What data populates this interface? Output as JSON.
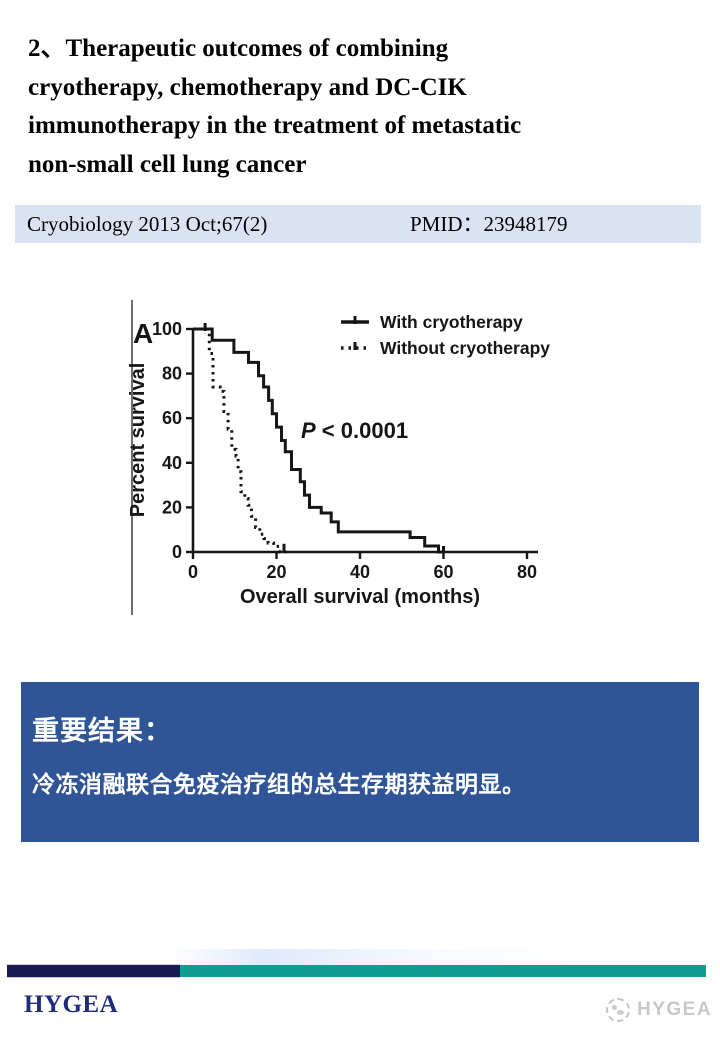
{
  "slide": {
    "title_lines": [
      "2、Therapeutic outcomes of combining",
      "cryotherapy, chemotherapy and DC-CIK",
      "immunotherapy in the treatment of metastatic",
      "non-small cell lung cancer"
    ],
    "citation": {
      "journal": "Cryobiology 2013 Oct;67(2)",
      "pmid": "PMID：23948179"
    }
  },
  "results_box": {
    "heading": "重要结果：",
    "body": "冷冻消融联合免疫治疗组的总生存期获益明显。",
    "bg_color": "#2F5597",
    "text_color": "#FFFFFF"
  },
  "footer": {
    "brand": "HYGEA",
    "brand_color": "#1F2C7C",
    "bar_navy_color": "#1A1A52",
    "bar_teal_color": "#109C90",
    "watermark_text": "HYGEA",
    "watermark_color": "#C8C8C8"
  },
  "chart_data": {
    "type": "line",
    "subtype": "kaplan-meier-step",
    "panel_label": "A",
    "title": "",
    "xlabel": "Overall survival (months)",
    "ylabel": "Percent survival",
    "xlim": [
      0,
      80
    ],
    "ylim": [
      0,
      100
    ],
    "xticks": [
      0,
      20,
      40,
      60,
      80
    ],
    "yticks": [
      0,
      20,
      40,
      60,
      80,
      100
    ],
    "grid": false,
    "legend_position": "top-right",
    "annotation": "P < 0.0001",
    "ink_color": "#161616",
    "series": [
      {
        "name": "With cryotherapy",
        "style": "solid",
        "color": "#161616",
        "points": [
          [
            0,
            100
          ],
          [
            4.6,
            100
          ],
          [
            4.6,
            95
          ],
          [
            9.8,
            95
          ],
          [
            9.8,
            89.5
          ],
          [
            13.3,
            89.5
          ],
          [
            13.3,
            85
          ],
          [
            15.7,
            85
          ],
          [
            15.7,
            79
          ],
          [
            16.9,
            79
          ],
          [
            16.9,
            74
          ],
          [
            18.1,
            74
          ],
          [
            18.1,
            68
          ],
          [
            19,
            68
          ],
          [
            19,
            62
          ],
          [
            20,
            62
          ],
          [
            20,
            56
          ],
          [
            21.2,
            56
          ],
          [
            21.2,
            50
          ],
          [
            22.1,
            50
          ],
          [
            22.1,
            45
          ],
          [
            23.6,
            45
          ],
          [
            23.6,
            37
          ],
          [
            25.7,
            37
          ],
          [
            25.7,
            31.5
          ],
          [
            26.7,
            31.5
          ],
          [
            26.7,
            25.5
          ],
          [
            27.9,
            25.5
          ],
          [
            27.9,
            20
          ],
          [
            30.7,
            20
          ],
          [
            30.7,
            17.5
          ],
          [
            33.1,
            17.5
          ],
          [
            33.1,
            13.5
          ],
          [
            34.8,
            13.5
          ],
          [
            34.8,
            9
          ],
          [
            52,
            9
          ],
          [
            52,
            6.5
          ],
          [
            55.5,
            6.5
          ],
          [
            55.5,
            2.7
          ],
          [
            58.8,
            2.7
          ],
          [
            58.8,
            0
          ],
          [
            60.3,
            0
          ]
        ],
        "censor_marks": [
          [
            2.9,
            100
          ],
          [
            60,
            0
          ]
        ]
      },
      {
        "name": "Without cryotherapy",
        "style": "dotted",
        "color": "#161616",
        "points": [
          [
            0,
            100
          ],
          [
            3.9,
            100
          ],
          [
            3.9,
            89
          ],
          [
            4.8,
            89
          ],
          [
            4.8,
            74
          ],
          [
            6.5,
            74
          ],
          [
            6.5,
            72
          ],
          [
            7.4,
            72
          ],
          [
            7.4,
            63
          ],
          [
            8.4,
            63
          ],
          [
            8.4,
            55
          ],
          [
            9.3,
            55
          ],
          [
            9.3,
            46
          ],
          [
            10.3,
            46
          ],
          [
            10.3,
            43
          ],
          [
            10.8,
            43
          ],
          [
            10.8,
            36
          ],
          [
            11.5,
            36
          ],
          [
            11.5,
            27
          ],
          [
            12.4,
            27
          ],
          [
            12.4,
            24
          ],
          [
            13.2,
            24
          ],
          [
            13.2,
            21
          ],
          [
            14,
            21
          ],
          [
            14,
            16
          ],
          [
            15,
            16
          ],
          [
            15,
            11
          ],
          [
            16,
            11
          ],
          [
            16,
            8
          ],
          [
            17,
            8
          ],
          [
            17,
            6
          ],
          [
            18,
            6
          ],
          [
            18,
            4
          ],
          [
            19.3,
            4
          ],
          [
            19.3,
            2.5
          ],
          [
            20.8,
            2.5
          ],
          [
            20.8,
            0
          ],
          [
            22.5,
            0
          ]
        ],
        "censor_marks": [
          [
            21.8,
            1
          ]
        ]
      }
    ]
  }
}
